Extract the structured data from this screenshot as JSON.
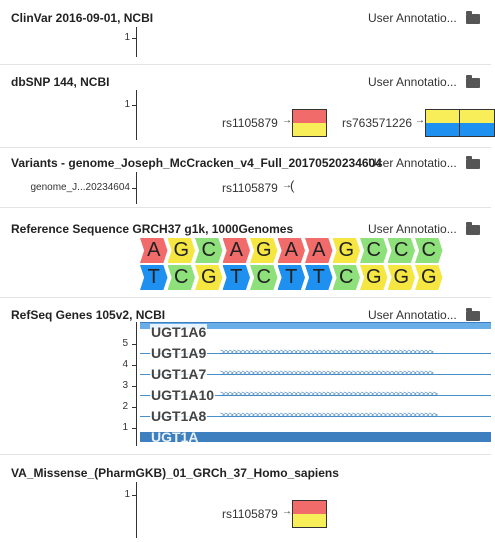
{
  "user_annotations_label": "User Annotatio...",
  "tracks": {
    "clinvar": {
      "title": "ClinVar 2016-09-01, NCBI",
      "axis_label": "1"
    },
    "dbsnp": {
      "title": "dbSNP 144, NCBI",
      "axis_label": "1",
      "snps": [
        "rs1105879",
        "rs763571226"
      ]
    },
    "variants": {
      "title": "Variants - genome_Joseph_McCracken_v4_Full_20170520234604",
      "axis_label": "genome_J...20234604",
      "snps": [
        "rs1105879"
      ]
    },
    "reference": {
      "title": "Reference Sequence GRCH37 g1k, 1000Genomes",
      "top_bases": [
        "A",
        "G",
        "C",
        "A",
        "G",
        "A",
        "A",
        "G",
        "C",
        "C",
        "C"
      ],
      "bottom_bases": [
        "T",
        "C",
        "G",
        "T",
        "C",
        "T",
        "T",
        "C",
        "G",
        "G",
        "G"
      ]
    },
    "refseq": {
      "title": "RefSeq Genes 105v2, NCBI",
      "axis_labels": [
        "5",
        "4",
        "3",
        "2",
        "1"
      ],
      "genes": [
        "UGT1A6",
        "UGT1A9",
        "UGT1A7",
        "UGT1A10",
        "UGT1A8",
        "UGT1A"
      ]
    },
    "va_missense": {
      "title": "VA_Missense_(PharmGKB)_01_GRCh_37_Homo_sapiens",
      "axis_label": "1",
      "snps": [
        "rs1105879"
      ]
    }
  },
  "colors": {
    "A": "#f26b6b",
    "G": "#f5e642",
    "C": "#8ee07a",
    "T": "#1e90ef",
    "snp_red": "#f26b6b",
    "snp_yellow": "#f7ee5a",
    "snp_blue": "#1e90ef",
    "gene_blue": "#3d7fbf"
  }
}
